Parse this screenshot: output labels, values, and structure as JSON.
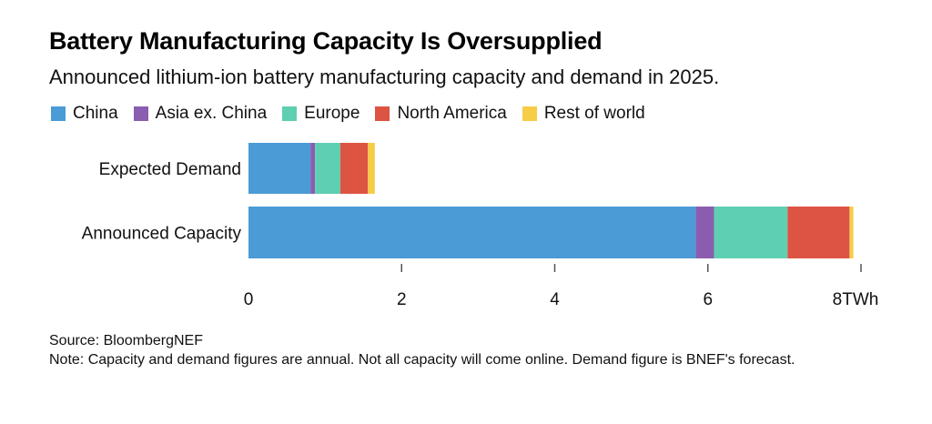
{
  "chart_data": {
    "type": "bar",
    "orientation": "horizontal",
    "stacked": true,
    "title": "Battery Manufacturing Capacity Is Oversupplied",
    "subtitle": "Announced lithium-ion battery manufacturing capacity and demand in 2025.",
    "categories": [
      "Expected Demand",
      "Announced Capacity"
    ],
    "series": [
      {
        "name": "China",
        "color": "#4a9bd6",
        "values": [
          0.81,
          5.84
        ]
      },
      {
        "name": "Asia ex. China",
        "color": "#8a5db0",
        "values": [
          0.06,
          0.24
        ]
      },
      {
        "name": "Europe",
        "color": "#5fcfb2",
        "values": [
          0.33,
          0.96
        ]
      },
      {
        "name": "North America",
        "color": "#dd5443",
        "values": [
          0.36,
          0.81
        ]
      },
      {
        "name": "Rest of world",
        "color": "#f7cd48",
        "values": [
          0.09,
          0.05
        ]
      }
    ],
    "xlabel": "",
    "x_unit": "TWh",
    "xlim": [
      0,
      8
    ],
    "x_ticks": [
      0,
      2,
      4,
      6,
      8
    ],
    "x_tick_labels": [
      "0",
      "2",
      "4",
      "6",
      "8TWh"
    ],
    "legend_position": "top-left",
    "grid": false
  },
  "footer": {
    "source": "Source: BloombergNEF",
    "note": "Note: Capacity and demand figures are annual. Not all capacity will come online. Demand figure is BNEF's forecast."
  }
}
